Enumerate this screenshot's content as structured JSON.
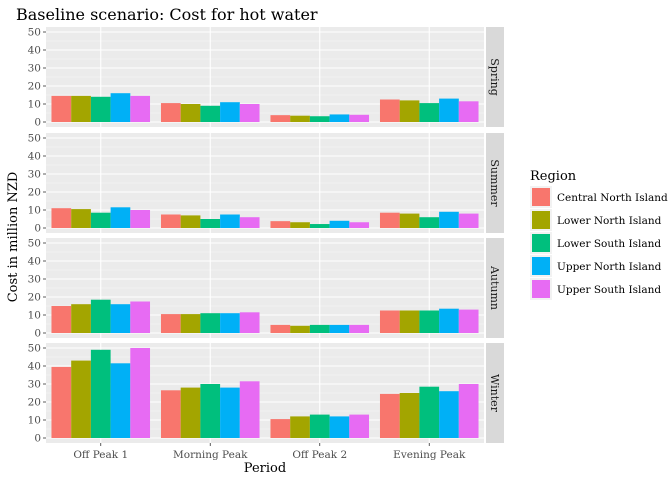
{
  "chart_data": {
    "type": "bar",
    "title": "Baseline scenario: Cost for hot water",
    "xlabel": "Period",
    "ylabel": "Cost in million NZD",
    "categories": [
      "Off Peak 1",
      "Morning Peak",
      "Off Peak 2",
      "Evening Peak"
    ],
    "ylim": [
      0,
      50
    ],
    "yticks": [
      0,
      10,
      20,
      30,
      40,
      50
    ],
    "grid": true,
    "legend": {
      "title": "Region",
      "position": "right"
    },
    "facets": [
      {
        "name": "Spring",
        "series": [
          {
            "name": "Central North Island",
            "values": [
              14.5,
              10.5,
              3.8,
              12.5
            ]
          },
          {
            "name": "Lower North Island",
            "values": [
              14.5,
              10.0,
              3.5,
              12.0
            ]
          },
          {
            "name": "Lower South Island",
            "values": [
              14.0,
              9.0,
              3.2,
              10.5
            ]
          },
          {
            "name": "Upper North Island",
            "values": [
              16.0,
              11.0,
              4.2,
              13.0
            ]
          },
          {
            "name": "Upper South Island",
            "values": [
              14.5,
              10.0,
              4.0,
              11.5
            ]
          }
        ]
      },
      {
        "name": "Summer",
        "series": [
          {
            "name": "Central North Island",
            "values": [
              11.0,
              7.5,
              3.8,
              8.5
            ]
          },
          {
            "name": "Lower North Island",
            "values": [
              10.5,
              7.0,
              3.2,
              8.0
            ]
          },
          {
            "name": "Lower South Island",
            "values": [
              8.5,
              5.0,
              2.2,
              6.0
            ]
          },
          {
            "name": "Upper North Island",
            "values": [
              11.5,
              7.5,
              4.0,
              9.0
            ]
          },
          {
            "name": "Upper South Island",
            "values": [
              10.0,
              6.0,
              3.2,
              8.0
            ]
          }
        ]
      },
      {
        "name": "Autumn",
        "series": [
          {
            "name": "Central North Island",
            "values": [
              15.0,
              10.5,
              4.5,
              12.5
            ]
          },
          {
            "name": "Lower North Island",
            "values": [
              16.0,
              10.5,
              4.0,
              12.5
            ]
          },
          {
            "name": "Lower South Island",
            "values": [
              18.5,
              11.0,
              4.5,
              12.5
            ]
          },
          {
            "name": "Upper North Island",
            "values": [
              16.0,
              11.0,
              4.5,
              13.5
            ]
          },
          {
            "name": "Upper South Island",
            "values": [
              17.5,
              11.5,
              4.5,
              13.0
            ]
          }
        ]
      },
      {
        "name": "Winter",
        "series": [
          {
            "name": "Central North Island",
            "values": [
              39.5,
              26.5,
              10.5,
              24.5
            ]
          },
          {
            "name": "Lower North Island",
            "values": [
              43.0,
              28.0,
              12.0,
              25.0
            ]
          },
          {
            "name": "Lower South Island",
            "values": [
              49.0,
              30.0,
              13.0,
              28.5
            ]
          },
          {
            "name": "Upper North Island",
            "values": [
              41.5,
              28.0,
              12.0,
              26.0
            ]
          },
          {
            "name": "Upper South Island",
            "values": [
              50.0,
              31.5,
              13.0,
              30.0
            ]
          }
        ]
      }
    ]
  },
  "colors": {
    "Central North Island": "#F8766D",
    "Lower North Island": "#A3A500",
    "Lower South Island": "#00BF7D",
    "Upper North Island": "#00B0F6",
    "Upper South Island": "#E76BF3",
    "panel_background": "#ebebeb",
    "grid_major": "#ffffff",
    "strip_background": "#d9d9d9"
  }
}
